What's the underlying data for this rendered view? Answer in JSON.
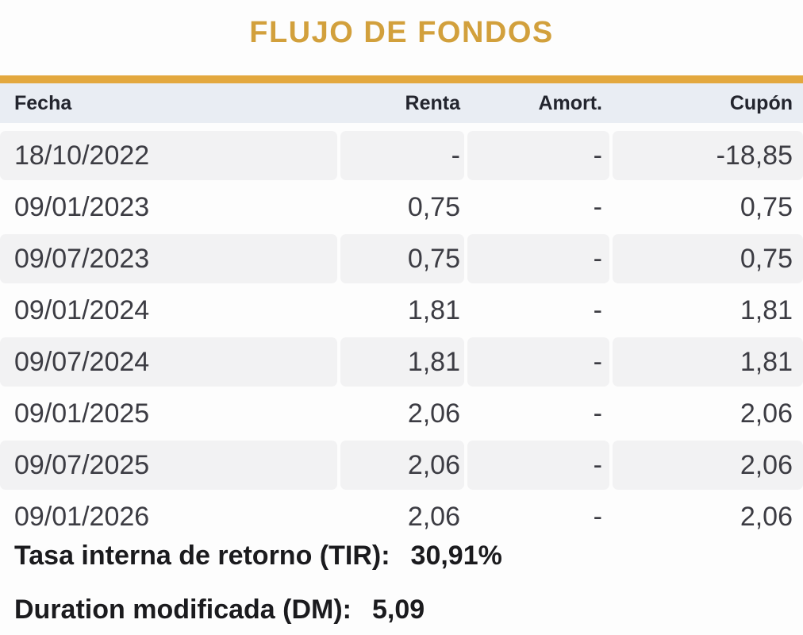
{
  "title": "FLUJO DE FONDOS",
  "colors": {
    "accent_gold_title": "#d2a03c",
    "accent_gold_bar": "#e3a83e",
    "header_background": "#e9edf3",
    "alt_row_background": "#f2f2f3"
  },
  "table": {
    "columns": {
      "fecha": "Fecha",
      "renta": "Renta",
      "amort": "Amort.",
      "cupon": "Cupón"
    },
    "rows": [
      {
        "fecha": "18/10/2022",
        "renta": "-",
        "amort": "-",
        "cupon": "-18,85"
      },
      {
        "fecha": "09/01/2023",
        "renta": "0,75",
        "amort": "-",
        "cupon": "0,75"
      },
      {
        "fecha": "09/07/2023",
        "renta": "0,75",
        "amort": "-",
        "cupon": "0,75"
      },
      {
        "fecha": "09/01/2024",
        "renta": "1,81",
        "amort": "-",
        "cupon": "1,81"
      },
      {
        "fecha": "09/07/2024",
        "renta": "1,81",
        "amort": "-",
        "cupon": "1,81"
      },
      {
        "fecha": "09/01/2025",
        "renta": "2,06",
        "amort": "-",
        "cupon": "2,06"
      },
      {
        "fecha": "09/07/2025",
        "renta": "2,06",
        "amort": "-",
        "cupon": "2,06"
      },
      {
        "fecha": "09/01/2026",
        "renta": "2,06",
        "amort": "-",
        "cupon": "2,06",
        "clipped": true
      }
    ]
  },
  "stats": [
    {
      "label": "Tasa interna de retorno (TIR):",
      "value": "30,91%"
    },
    {
      "label": "Duration modificada (DM):",
      "value": "5,09"
    }
  ]
}
